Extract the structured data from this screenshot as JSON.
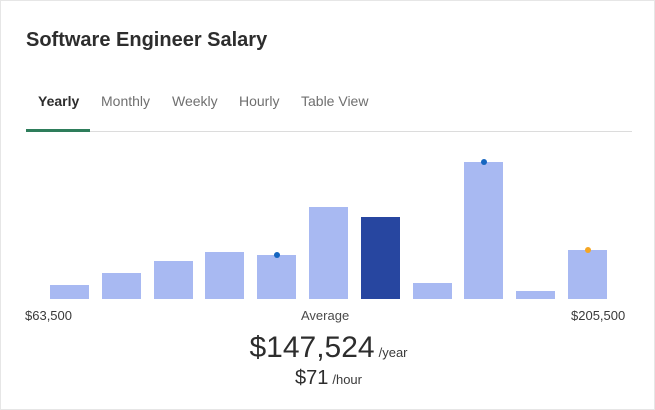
{
  "title": "Software Engineer Salary",
  "tabs": [
    {
      "label": "Yearly",
      "active": true
    },
    {
      "label": "Monthly",
      "active": false
    },
    {
      "label": "Weekly",
      "active": false
    },
    {
      "label": "Hourly",
      "active": false
    },
    {
      "label": "Table View",
      "active": false
    }
  ],
  "colors": {
    "bar": "#a8b9f2",
    "bar_highlight": "#2746a0",
    "tab_underline": "#2e7d5b",
    "dot_blue": "#1565c0",
    "dot_orange": "#f5a623"
  },
  "chart_data": {
    "type": "bar",
    "bar_heights_relative": [
      0.1,
      0.19,
      0.28,
      0.34,
      0.32,
      0.67,
      0.6,
      0.12,
      1.0,
      0.06,
      0.36
    ],
    "highlight_index": 6,
    "markers": [
      {
        "bar_index": 4,
        "color": "#1565c0"
      },
      {
        "bar_index": 8,
        "color": "#1565c0"
      },
      {
        "bar_index": 10,
        "color": "#f5a623"
      }
    ],
    "min_label": "$63,500",
    "average_label": "Average",
    "max_label": "$205,500"
  },
  "salary": {
    "yearly_amount": "$147,524",
    "yearly_unit": "/year",
    "hourly_amount": "$71",
    "hourly_unit": "/hour"
  }
}
